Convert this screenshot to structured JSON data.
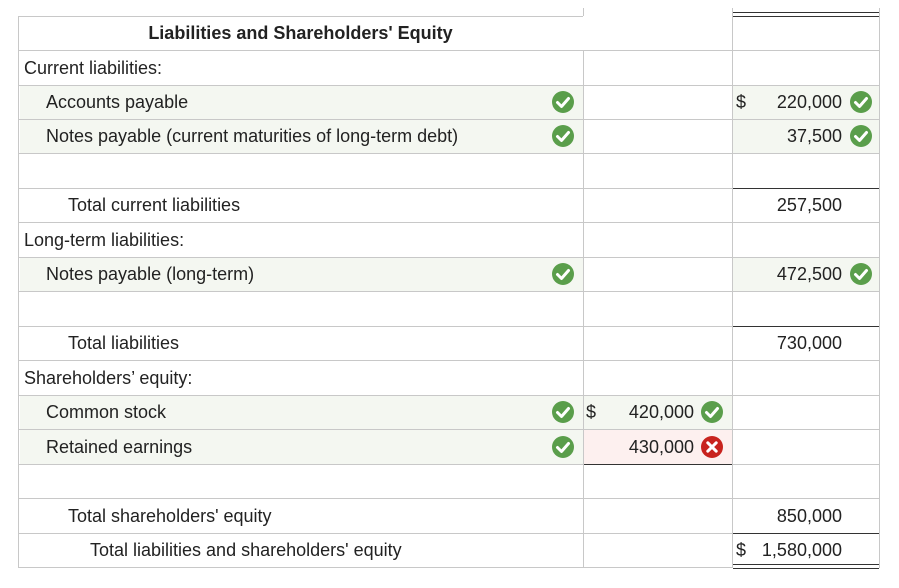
{
  "title": "Liabilities and Shareholders' Equity",
  "rows": {
    "current_liabilities_label": "Current liabilities:",
    "accounts_payable": {
      "label": "Accounts payable",
      "dollar": "$",
      "amount": "220,000",
      "label_status": "correct",
      "amount_status": "correct"
    },
    "notes_payable_current": {
      "label": "Notes payable (current maturities of long-term debt)",
      "amount": "37,500",
      "label_status": "correct",
      "amount_status": "correct"
    },
    "total_current_liabilities": {
      "label": "Total current liabilities",
      "amount": "257,500"
    },
    "long_term_liabilities_label": "Long-term liabilities:",
    "notes_payable_long_term": {
      "label": "Notes payable (long-term)",
      "amount": "472,500",
      "label_status": "correct",
      "amount_status": "correct"
    },
    "total_liabilities": {
      "label": "Total liabilities",
      "amount": "730,000"
    },
    "shareholders_equity_label": "Shareholders’ equity:",
    "common_stock": {
      "label": "Common stock",
      "dollar": "$",
      "amount": "420,000",
      "label_status": "correct",
      "amount_status": "correct"
    },
    "retained_earnings": {
      "label": "Retained earnings",
      "amount": "430,000",
      "label_status": "correct",
      "amount_status": "incorrect"
    },
    "total_shareholders_equity": {
      "label": "Total shareholders' equity",
      "amount": "850,000"
    },
    "total_liabilities_and_equity": {
      "label": "Total liabilities and shareholders' equity",
      "dollar": "$",
      "amount": "1,580,000"
    }
  },
  "colors": {
    "correct": "#5a9e4b",
    "incorrect": "#c8231e",
    "grid": "#c8c8c8",
    "shade_correct": "#f4f7f1",
    "shade_incorrect": "#fdf0ef"
  },
  "icons": {
    "correct": "check-circle-icon",
    "incorrect": "x-circle-icon"
  }
}
